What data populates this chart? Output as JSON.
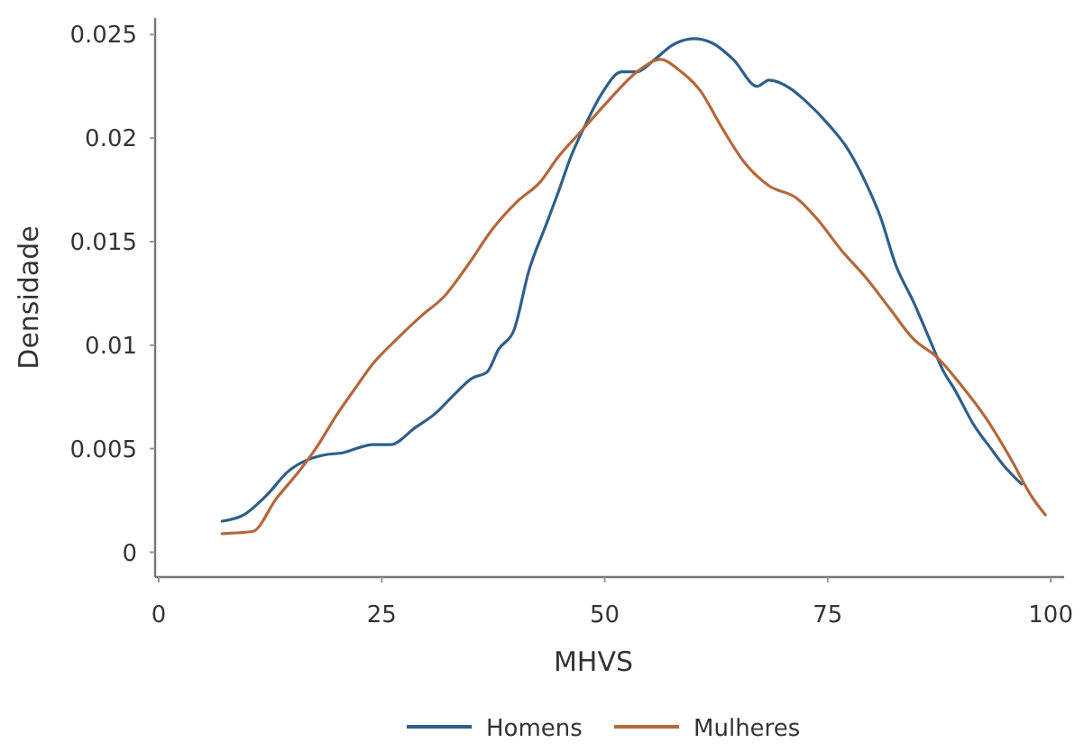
{
  "chart_data": {
    "type": "line",
    "xlabel": "MHVS",
    "ylabel": "Densidade",
    "xlim": [
      0,
      101.5
    ],
    "xticks": [
      0,
      25,
      50,
      75,
      100
    ],
    "ylim": [
      -0.0012,
      0.0258
    ],
    "yticks": [
      0,
      0.005,
      0.01,
      0.015,
      0.02,
      0.025
    ],
    "grid": false,
    "legend": "bottom",
    "marker": "none",
    "line_style": "solid",
    "series": [
      {
        "name": "Homens",
        "color": "#2e5f8c",
        "x": [
          7.1,
          9.5,
          12.2,
          14.5,
          16.9,
          18.6,
          20.6,
          24,
          26,
          28.7,
          31,
          33.1,
          35.1,
          36.8,
          38.1,
          39.8,
          41.5,
          43.5,
          44.8,
          46.2,
          47.9,
          49.6,
          51.9,
          53.6,
          55.6,
          57.6,
          60,
          62,
          64.4,
          67.1,
          68.4,
          70.8,
          72.5,
          75.2,
          77.2,
          79.2,
          80.9,
          82.6,
          84.6,
          86.6,
          87.9,
          89.3,
          91.3,
          93.3,
          94.7,
          96.7
        ],
        "values": [
          0.0015,
          0.0018,
          0.0028,
          0.0039,
          0.0045,
          0.0047,
          0.0048,
          0.0052,
          0.0052,
          0.006,
          0.0067,
          0.0076,
          0.0084,
          0.0087,
          0.0098,
          0.0107,
          0.0136,
          0.0159,
          0.0174,
          0.0191,
          0.0207,
          0.0221,
          0.0232,
          0.0232,
          0.0238,
          0.0245,
          0.0248,
          0.0246,
          0.0238,
          0.0225,
          0.0228,
          0.0224,
          0.0218,
          0.0206,
          0.0195,
          0.0179,
          0.0162,
          0.0139,
          0.0121,
          0.0101,
          0.0088,
          0.0078,
          0.0062,
          0.005,
          0.0042,
          0.0033
        ]
      },
      {
        "name": "Mulheres",
        "color": "#b5683a",
        "x": [
          7.1,
          10.5,
          13.2,
          15.9,
          17.9,
          19.9,
          22,
          24,
          26.7,
          29.4,
          32.1,
          34.7,
          37.4,
          40.1,
          42.8,
          44.8,
          47.5,
          50.6,
          53.6,
          56.3,
          58.3,
          60.7,
          63,
          65.7,
          68.4,
          71.5,
          73.8,
          76.5,
          79.2,
          81.9,
          84.6,
          87.3,
          89.9,
          92.7,
          95.4,
          98,
          99.4
        ],
        "values": [
          0.0009,
          0.001,
          0.0026,
          0.004,
          0.0052,
          0.0066,
          0.0079,
          0.0091,
          0.0103,
          0.0114,
          0.0124,
          0.0139,
          0.0156,
          0.0169,
          0.0179,
          0.0191,
          0.0204,
          0.0219,
          0.0232,
          0.0238,
          0.0233,
          0.0223,
          0.0206,
          0.0188,
          0.0177,
          0.0171,
          0.0161,
          0.0146,
          0.0133,
          0.0118,
          0.0103,
          0.0094,
          0.0081,
          0.0065,
          0.0046,
          0.0026,
          0.0018
        ]
      }
    ]
  }
}
